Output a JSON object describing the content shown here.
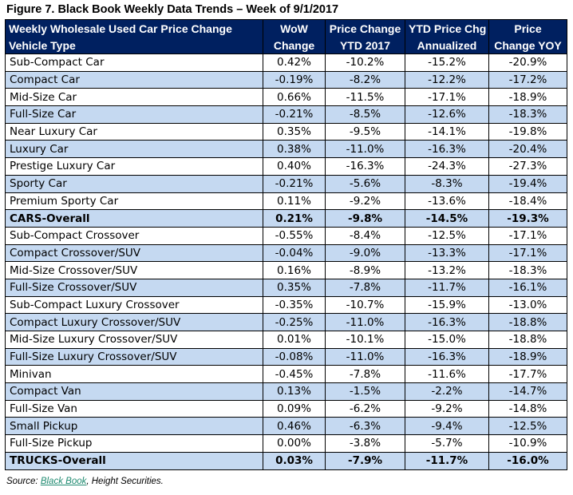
{
  "title": "Figure 7. Black Book Weekly Data Trends – Week of 9/1/2017",
  "chart_data": {
    "type": "table",
    "title": "Figure 7. Black Book Weekly Data Trends – Week of 9/1/2017",
    "header_row1": [
      "Weekly Wholesale Used Car Price Change",
      "WoW",
      "Price Change",
      "YTD Price Chg",
      "Price"
    ],
    "header_row2": [
      "Vehicle Type",
      "Change",
      "YTD 2017",
      "Annualized",
      "Change YOY"
    ],
    "rows": [
      {
        "type": "Sub-Compact Car",
        "wow": "0.42%",
        "ytd": "-10.2%",
        "ann": "-15.2%",
        "yoy": "-20.9%"
      },
      {
        "type": "Compact Car",
        "wow": "-0.19%",
        "ytd": "-8.2%",
        "ann": "-12.2%",
        "yoy": "-17.2%"
      },
      {
        "type": "Mid-Size Car",
        "wow": "0.66%",
        "ytd": "-11.5%",
        "ann": "-17.1%",
        "yoy": "-18.9%"
      },
      {
        "type": "Full-Size Car",
        "wow": "-0.21%",
        "ytd": "-8.5%",
        "ann": "-12.6%",
        "yoy": "-18.3%"
      },
      {
        "type": "Near Luxury Car",
        "wow": "0.35%",
        "ytd": "-9.5%",
        "ann": "-14.1%",
        "yoy": "-19.8%"
      },
      {
        "type": "Luxury Car",
        "wow": "0.38%",
        "ytd": "-11.0%",
        "ann": "-16.3%",
        "yoy": "-20.4%"
      },
      {
        "type": "Prestige Luxury Car",
        "wow": "0.40%",
        "ytd": "-16.3%",
        "ann": "-24.3%",
        "yoy": "-27.3%"
      },
      {
        "type": "Sporty Car",
        "wow": "-0.21%",
        "ytd": "-5.6%",
        "ann": "-8.3%",
        "yoy": "-19.4%"
      },
      {
        "type": "Premium Sporty Car",
        "wow": "0.11%",
        "ytd": "-9.2%",
        "ann": "-13.6%",
        "yoy": "-18.4%"
      },
      {
        "type": "CARS-Overall",
        "wow": "0.21%",
        "ytd": "-9.8%",
        "ann": "-14.5%",
        "yoy": "-19.3%"
      },
      {
        "type": "Sub-Compact Crossover",
        "wow": "-0.55%",
        "ytd": "-8.4%",
        "ann": "-12.5%",
        "yoy": "-17.1%"
      },
      {
        "type": "Compact Crossover/SUV",
        "wow": "-0.04%",
        "ytd": "-9.0%",
        "ann": "-13.3%",
        "yoy": "-17.1%"
      },
      {
        "type": "Mid-Size Crossover/SUV",
        "wow": "0.16%",
        "ytd": "-8.9%",
        "ann": "-13.2%",
        "yoy": "-18.3%"
      },
      {
        "type": "Full-Size Crossover/SUV",
        "wow": "0.35%",
        "ytd": "-7.8%",
        "ann": "-11.7%",
        "yoy": "-16.1%"
      },
      {
        "type": "Sub-Compact Luxury Crossover",
        "wow": "-0.35%",
        "ytd": "-10.7%",
        "ann": "-15.9%",
        "yoy": "-13.0%"
      },
      {
        "type": "Compact Luxury Crossover/SUV",
        "wow": "-0.25%",
        "ytd": "-11.0%",
        "ann": "-16.3%",
        "yoy": "-18.8%"
      },
      {
        "type": "Mid-Size Luxury Crossover/SUV",
        "wow": "0.01%",
        "ytd": "-10.1%",
        "ann": "-15.0%",
        "yoy": "-18.8%"
      },
      {
        "type": "Full-Size Luxury Crossover/SUV",
        "wow": "-0.08%",
        "ytd": "-11.0%",
        "ann": "-16.3%",
        "yoy": "-18.9%"
      },
      {
        "type": "Minivan",
        "wow": "-0.45%",
        "ytd": "-7.8%",
        "ann": "-11.6%",
        "yoy": "-17.7%"
      },
      {
        "type": "Compact Van",
        "wow": "0.13%",
        "ytd": "-1.5%",
        "ann": "-2.2%",
        "yoy": "-14.7%"
      },
      {
        "type": "Full-Size Van",
        "wow": "0.09%",
        "ytd": "-6.2%",
        "ann": "-9.2%",
        "yoy": "-14.8%"
      },
      {
        "type": "Small Pickup",
        "wow": "0.46%",
        "ytd": "-6.3%",
        "ann": "-9.4%",
        "yoy": "-12.5%"
      },
      {
        "type": "Full-Size Pickup",
        "wow": "0.00%",
        "ytd": "-3.8%",
        "ann": "-5.7%",
        "yoy": "-10.9%"
      },
      {
        "type": "TRUCKS-Overall",
        "wow": "0.03%",
        "ytd": "-7.9%",
        "ann": "-11.7%",
        "yoy": "-16.0%"
      }
    ],
    "total_rows": [
      "CARS-Overall",
      "TRUCKS-Overall"
    ]
  },
  "source": {
    "prefix": "Source: ",
    "link": "Black Book",
    "suffix": ", Height Securities."
  },
  "colors": {
    "header_bg": "#002060",
    "header_text": "#ffffff",
    "alt_row_bg": "#c5d9f1",
    "row_bg": "#ffffff",
    "link": "#1f8a70"
  }
}
